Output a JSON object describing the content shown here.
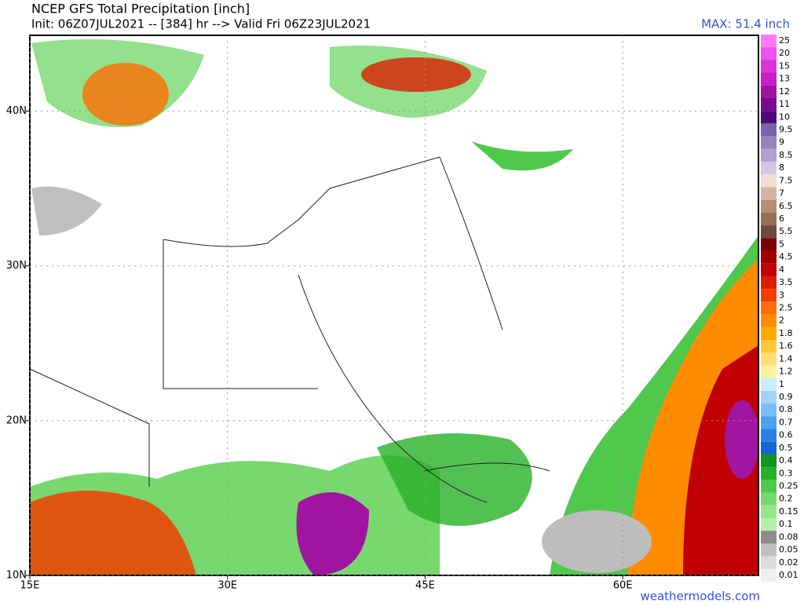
{
  "header": {
    "title": "NCEP GFS Total Precipitation [inch]",
    "init": "Init: 06Z07JUL2021 -- [384] hr --> Valid Fri 06Z23JUL2021",
    "max": "MAX: 51.4 inch"
  },
  "map": {
    "lon_range": [
      15,
      70.3
    ],
    "lat_range": [
      10,
      44.9
    ],
    "lon_ticks": [
      {
        "value": 15,
        "label": "15E"
      },
      {
        "value": 30,
        "label": "30E"
      },
      {
        "value": 45,
        "label": "45E"
      },
      {
        "value": 60,
        "label": "60E"
      }
    ],
    "lat_ticks": [
      {
        "value": 40,
        "label": "40N"
      },
      {
        "value": 30,
        "label": "30N"
      },
      {
        "value": 20,
        "label": "20N"
      },
      {
        "value": 10,
        "label": "10N"
      }
    ]
  },
  "legend": {
    "levels": [
      25,
      20,
      15,
      13,
      12,
      11,
      10,
      9.5,
      9,
      8.5,
      8,
      7.5,
      7,
      6.5,
      6,
      5.5,
      5,
      4.5,
      4,
      3.5,
      3,
      2.5,
      2,
      1.8,
      1.6,
      1.4,
      1.2,
      1,
      0.9,
      0.8,
      0.7,
      0.6,
      0.5,
      0.4,
      0.3,
      0.25,
      0.2,
      0.15,
      0.1,
      0.08,
      0.05,
      0.02,
      0.01
    ],
    "colors": [
      "#ff78ff",
      "#f050f0",
      "#dc32dc",
      "#c81ec8",
      "#a014a0",
      "#7a0a8c",
      "#500a78",
      "#7864aa",
      "#9682be",
      "#b4a0d2",
      "#d2c8e6",
      "#f0dcd2",
      "#d2b4a0",
      "#b48c78",
      "#966e5a",
      "#6e4a3c",
      "#780000",
      "#a00000",
      "#c00000",
      "#dc1e00",
      "#f04000",
      "#ff6e00",
      "#ff8c00",
      "#ffaa00",
      "#ffc83c",
      "#ffe070",
      "#fff0a0",
      "#c8f0fc",
      "#a0d2fa",
      "#78bef8",
      "#50a0f0",
      "#2882e6",
      "#1464d2",
      "#10961e",
      "#28b028",
      "#50c84c",
      "#78d870",
      "#96e68c",
      "#b4f0a8",
      "#8c8c8c",
      "#c0c0c0",
      "#dcdcdc",
      "#f0f0f0"
    ]
  },
  "footer": {
    "credit": "weathermodels.com"
  }
}
